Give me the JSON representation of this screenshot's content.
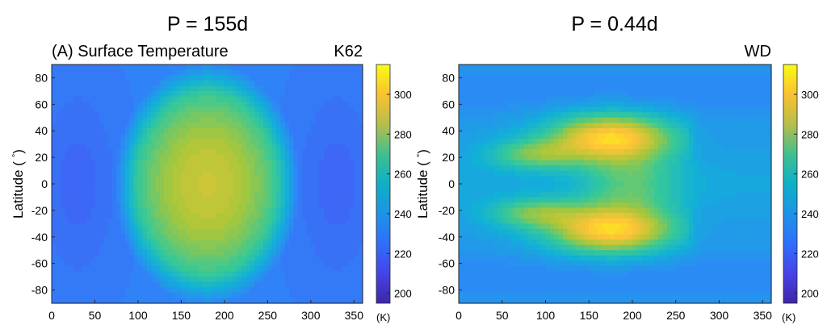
{
  "chart_data": [
    {
      "type": "heatmap",
      "period_title": "P = 155d",
      "panel_title": "(A) Surface Temperature",
      "label": "K62",
      "xlabel": "",
      "ylabel": "Latitude (°)",
      "ylabel_text": "Latitude (",
      "ylabel_degree": "°",
      "ylabel_close": ")",
      "x_ticks": [
        "0",
        "50",
        "100",
        "150",
        "200",
        "250",
        "300",
        "350"
      ],
      "y_ticks": [
        "80",
        "60",
        "40",
        "20",
        "0",
        "-20",
        "-40",
        "-60",
        "-80"
      ],
      "xlim": [
        0,
        360
      ],
      "ylim": [
        -90,
        90
      ],
      "colorbar": {
        "ticks": [
          "300",
          "280",
          "260",
          "240",
          "220",
          "200"
        ],
        "unit": "(K)",
        "range": [
          195,
          315
        ]
      },
      "field": {
        "pattern": "dayside_ellipse",
        "center_lon": 180,
        "peak_K": 287,
        "night_min_K": 222,
        "cold_spot_lons": [
          30,
          330
        ]
      }
    },
    {
      "type": "heatmap",
      "period_title": "P = 0.44d",
      "panel_title": "",
      "label": "WD",
      "xlabel": "",
      "ylabel": "Latitude (°)",
      "ylabel_text": "Latitude (",
      "ylabel_degree": "°",
      "ylabel_close": ")",
      "x_ticks": [
        "0",
        "50",
        "100",
        "150",
        "200",
        "250",
        "300",
        "350"
      ],
      "y_ticks": [
        "80",
        "60",
        "40",
        "20",
        "0",
        "-20",
        "-40",
        "-60",
        "-80"
      ],
      "xlim": [
        0,
        360
      ],
      "ylim": [
        -90,
        90
      ],
      "colorbar": {
        "ticks": [
          "300",
          "280",
          "260",
          "240",
          "220",
          "200"
        ],
        "unit": "(K)",
        "range": [
          195,
          315
        ]
      },
      "field": {
        "pattern": "twin_lobes",
        "lobe_lats": [
          35,
          -35
        ],
        "peak_K": 304,
        "night_min_K": 232
      }
    }
  ]
}
